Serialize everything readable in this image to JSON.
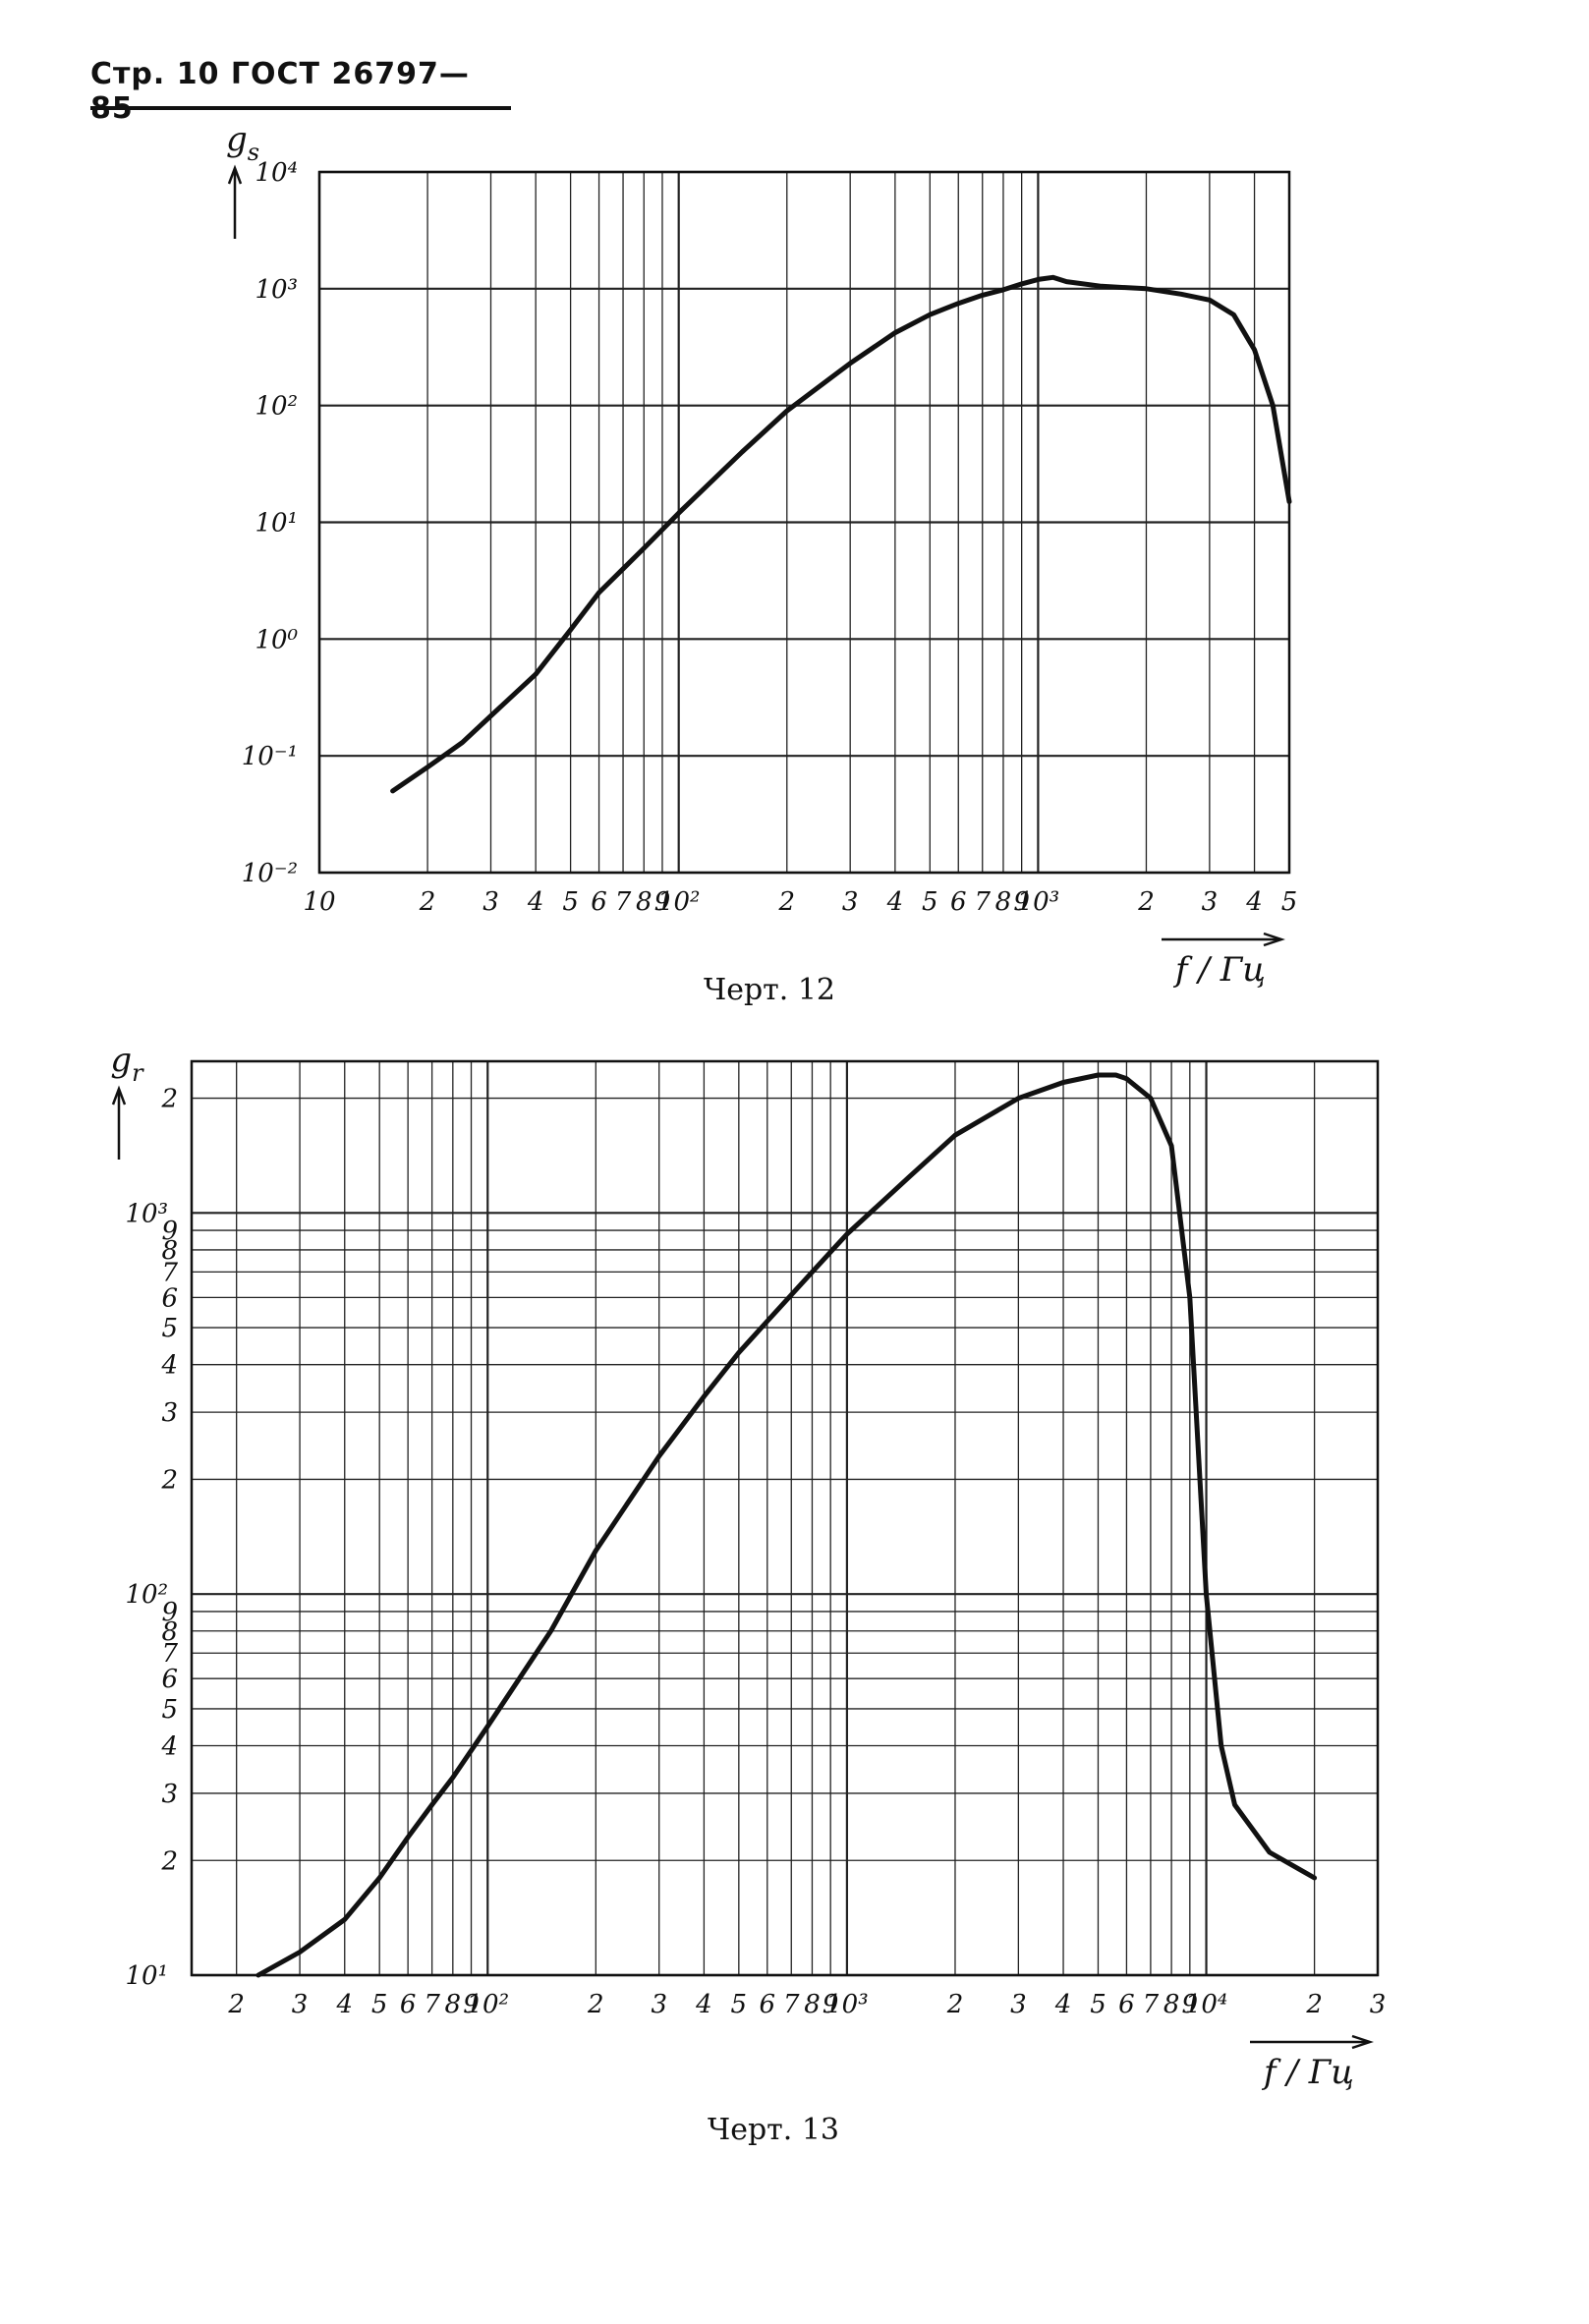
{
  "header": {
    "text": "Стр. 10 ГОСТ 26797—85"
  },
  "charts": [
    {
      "caption": "Черт. 12",
      "ylabel": "g_s",
      "xlabel": "f / Гц",
      "x_ticks": [
        "10",
        "2",
        "3",
        "4",
        "5",
        "6",
        "7",
        "8",
        "9",
        "10²",
        "2",
        "3",
        "4",
        "5",
        "6",
        "7",
        "8",
        "9",
        "10³",
        "2",
        "3",
        "4",
        "5"
      ],
      "y_ticks": [
        "10⁴",
        "10³",
        "10²",
        "10¹",
        "10⁰",
        "10⁻¹",
        "10⁻²"
      ]
    },
    {
      "caption": "Черт. 13",
      "ylabel": "g_r",
      "xlabel": "f / Гц",
      "x_ticks": [
        "2",
        "3",
        "4",
        "5",
        "6",
        "7",
        "8",
        "9",
        "10²",
        "2",
        "3",
        "4",
        "5",
        "6",
        "7",
        "8",
        "9",
        "10³",
        "2",
        "3",
        "4",
        "5",
        "6",
        "7",
        "8",
        "9",
        "10⁴",
        "2",
        "3"
      ],
      "y_ticks": [
        "2",
        "10³",
        "9",
        "8",
        "7",
        "6",
        "5",
        "4",
        "3",
        "2",
        "10²",
        "9",
        "8",
        "7",
        "6",
        "5",
        "4",
        "3",
        "2",
        "10¹"
      ]
    }
  ],
  "chart_data": [
    {
      "type": "line",
      "title": "",
      "xlabel": "f / Гц",
      "ylabel": "g_s",
      "x_scale": "log",
      "y_scale": "log",
      "xlim": [
        10,
        5000
      ],
      "ylim": [
        0.01,
        10000
      ],
      "grid": true,
      "series": [
        {
          "x": [
            16,
            20,
            25,
            30,
            40,
            50,
            60,
            80,
            100,
            150,
            200,
            300,
            400,
            500,
            600,
            700,
            800,
            900,
            1000,
            1100,
            1200,
            1500,
            2000,
            2500,
            3000,
            3500,
            4000,
            4500,
            5000
          ],
          "y": [
            0.05,
            0.08,
            0.13,
            0.22,
            0.5,
            1.2,
            2.5,
            6,
            12,
            40,
            90,
            230,
            420,
            600,
            750,
            880,
            980,
            1100,
            1200,
            1250,
            1150,
            1050,
            1000,
            900,
            800,
            600,
            300,
            100,
            15
          ]
        }
      ]
    },
    {
      "type": "line",
      "title": "",
      "xlabel": "f / Гц",
      "ylabel": "g_r",
      "x_scale": "log",
      "y_scale": "log",
      "xlim": [
        15,
        30000
      ],
      "ylim": [
        10,
        2500
      ],
      "grid": true,
      "series": [
        {
          "x": [
            23,
            30,
            40,
            50,
            60,
            70,
            80,
            100,
            150,
            200,
            300,
            400,
            500,
            600,
            800,
            1000,
            1500,
            2000,
            3000,
            4000,
            5000,
            5600,
            6000,
            7000,
            8000,
            9000,
            10000,
            11000,
            12000,
            15000,
            20000
          ],
          "y": [
            10,
            11.5,
            14,
            18,
            23,
            28,
            33,
            45,
            80,
            130,
            230,
            330,
            430,
            520,
            700,
            880,
            1250,
            1600,
            2000,
            2200,
            2300,
            2300,
            2250,
            2000,
            1500,
            600,
            100,
            40,
            28,
            21,
            18
          ]
        }
      ]
    }
  ]
}
